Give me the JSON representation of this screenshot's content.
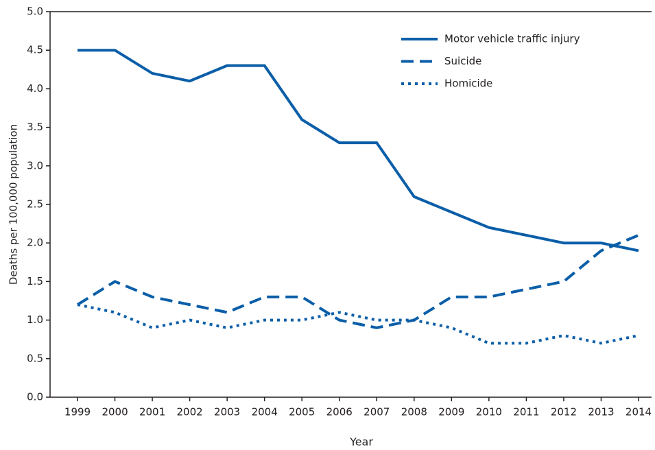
{
  "chart_data": {
    "type": "line",
    "x_label": "Year",
    "y_label": "Deaths per 100,000 population",
    "categories": [
      "1999",
      "2000",
      "2001",
      "2002",
      "2003",
      "2004",
      "2005",
      "2006",
      "2007",
      "2008",
      "2009",
      "2010",
      "2011",
      "2012",
      "2013",
      "2014"
    ],
    "series": [
      {
        "name": "Motor vehicle traffic injury",
        "color": "#0b5ea8",
        "dash": "solid",
        "values": [
          4.5,
          4.5,
          4.2,
          4.1,
          4.3,
          4.3,
          3.6,
          3.3,
          3.3,
          2.6,
          2.4,
          2.2,
          2.1,
          2.0,
          2.0,
          1.9
        ]
      },
      {
        "name": "Suicide",
        "color": "#0b5ea8",
        "dash": "dashed",
        "values": [
          1.2,
          1.5,
          1.3,
          1.2,
          1.1,
          1.3,
          1.3,
          1.0,
          0.9,
          1.0,
          1.3,
          1.3,
          1.4,
          1.5,
          1.9,
          2.1
        ]
      },
      {
        "name": "Homicide",
        "color": "#0b5ea8",
        "dash": "dotted",
        "values": [
          1.2,
          1.1,
          0.9,
          1.0,
          0.9,
          1.0,
          1.0,
          1.1,
          1.0,
          1.0,
          0.9,
          0.7,
          0.7,
          0.8,
          0.7,
          0.8
        ]
      }
    ],
    "ylim": [
      0,
      5
    ],
    "yticks": [
      {
        "value": 0,
        "label": "0.0"
      },
      0.5,
      {
        "value": 1,
        "label": "1.0"
      },
      1.5,
      {
        "value": 2,
        "label": "2.0"
      },
      2.5,
      {
        "value": 3,
        "label": "3.0"
      },
      3.5,
      {
        "value": 4,
        "label": "4.0"
      },
      4.5,
      {
        "value": 5,
        "label": "5.0"
      }
    ],
    "grid": false,
    "legend": "top-right"
  }
}
